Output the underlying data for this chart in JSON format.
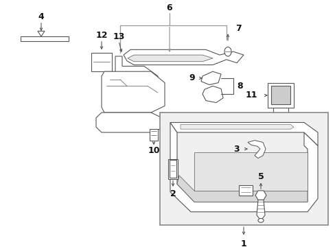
{
  "bg_color": "#ffffff",
  "fig_width": 4.89,
  "fig_height": 3.6,
  "dpi": 100,
  "line_color": "#555555",
  "bracket_color": "#999999",
  "inset_bg": "#f0f0f0",
  "inset_border": "#888888"
}
